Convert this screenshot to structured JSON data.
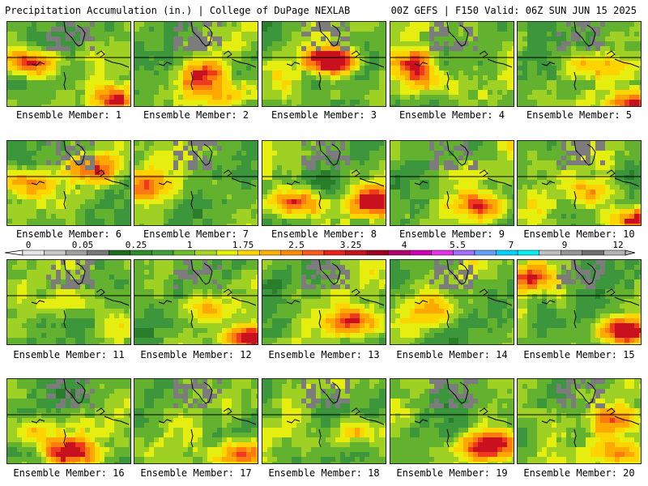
{
  "header": {
    "left": "Precipitation Accumulation (in.) | College of DuPage NEXLAB",
    "right": "00Z GEFS | F150 Valid: 06Z SUN JUN 15 2025"
  },
  "colorbar": {
    "tick_labels": [
      "0",
      "0.05",
      "0.25",
      "1",
      "1.75",
      "2.5",
      "3.25",
      "4",
      "5.5",
      "7",
      "9",
      "12"
    ],
    "colors": [
      "#e6e6e6",
      "#c8c8c8",
      "#a0a0a0",
      "#787878",
      "#1e6e1e",
      "#2e8b2e",
      "#40a040",
      "#6cbf2a",
      "#a8d820",
      "#e8f000",
      "#ffd700",
      "#ffb000",
      "#ff8c00",
      "#ff5a1e",
      "#e8201e",
      "#c8101e",
      "#a0001e",
      "#b4006e",
      "#d200b4",
      "#e632e6",
      "#a06eff",
      "#64a0ff",
      "#00d2ff",
      "#00f0f0",
      "#bebebe",
      "#969696",
      "#6e6e6e",
      "#b4b4b4"
    ]
  },
  "members": [
    {
      "label": "Ensemble Member: 1"
    },
    {
      "label": "Ensemble Member: 2"
    },
    {
      "label": "Ensemble Member: 3"
    },
    {
      "label": "Ensemble Member: 4"
    },
    {
      "label": "Ensemble Member: 5"
    },
    {
      "label": "Ensemble Member: 6"
    },
    {
      "label": "Ensemble Member: 7"
    },
    {
      "label": "Ensemble Member: 8"
    },
    {
      "label": "Ensemble Member: 9"
    },
    {
      "label": "Ensemble Member: 10"
    },
    {
      "label": "Ensemble Member: 11"
    },
    {
      "label": "Ensemble Member: 12"
    },
    {
      "label": "Ensemble Member: 13"
    },
    {
      "label": "Ensemble Member: 14"
    },
    {
      "label": "Ensemble Member: 15"
    },
    {
      "label": "Ensemble Member: 16"
    },
    {
      "label": "Ensemble Member: 17"
    },
    {
      "label": "Ensemble Member: 18"
    },
    {
      "label": "Ensemble Member: 19"
    },
    {
      "label": "Ensemble Member: 20"
    }
  ]
}
